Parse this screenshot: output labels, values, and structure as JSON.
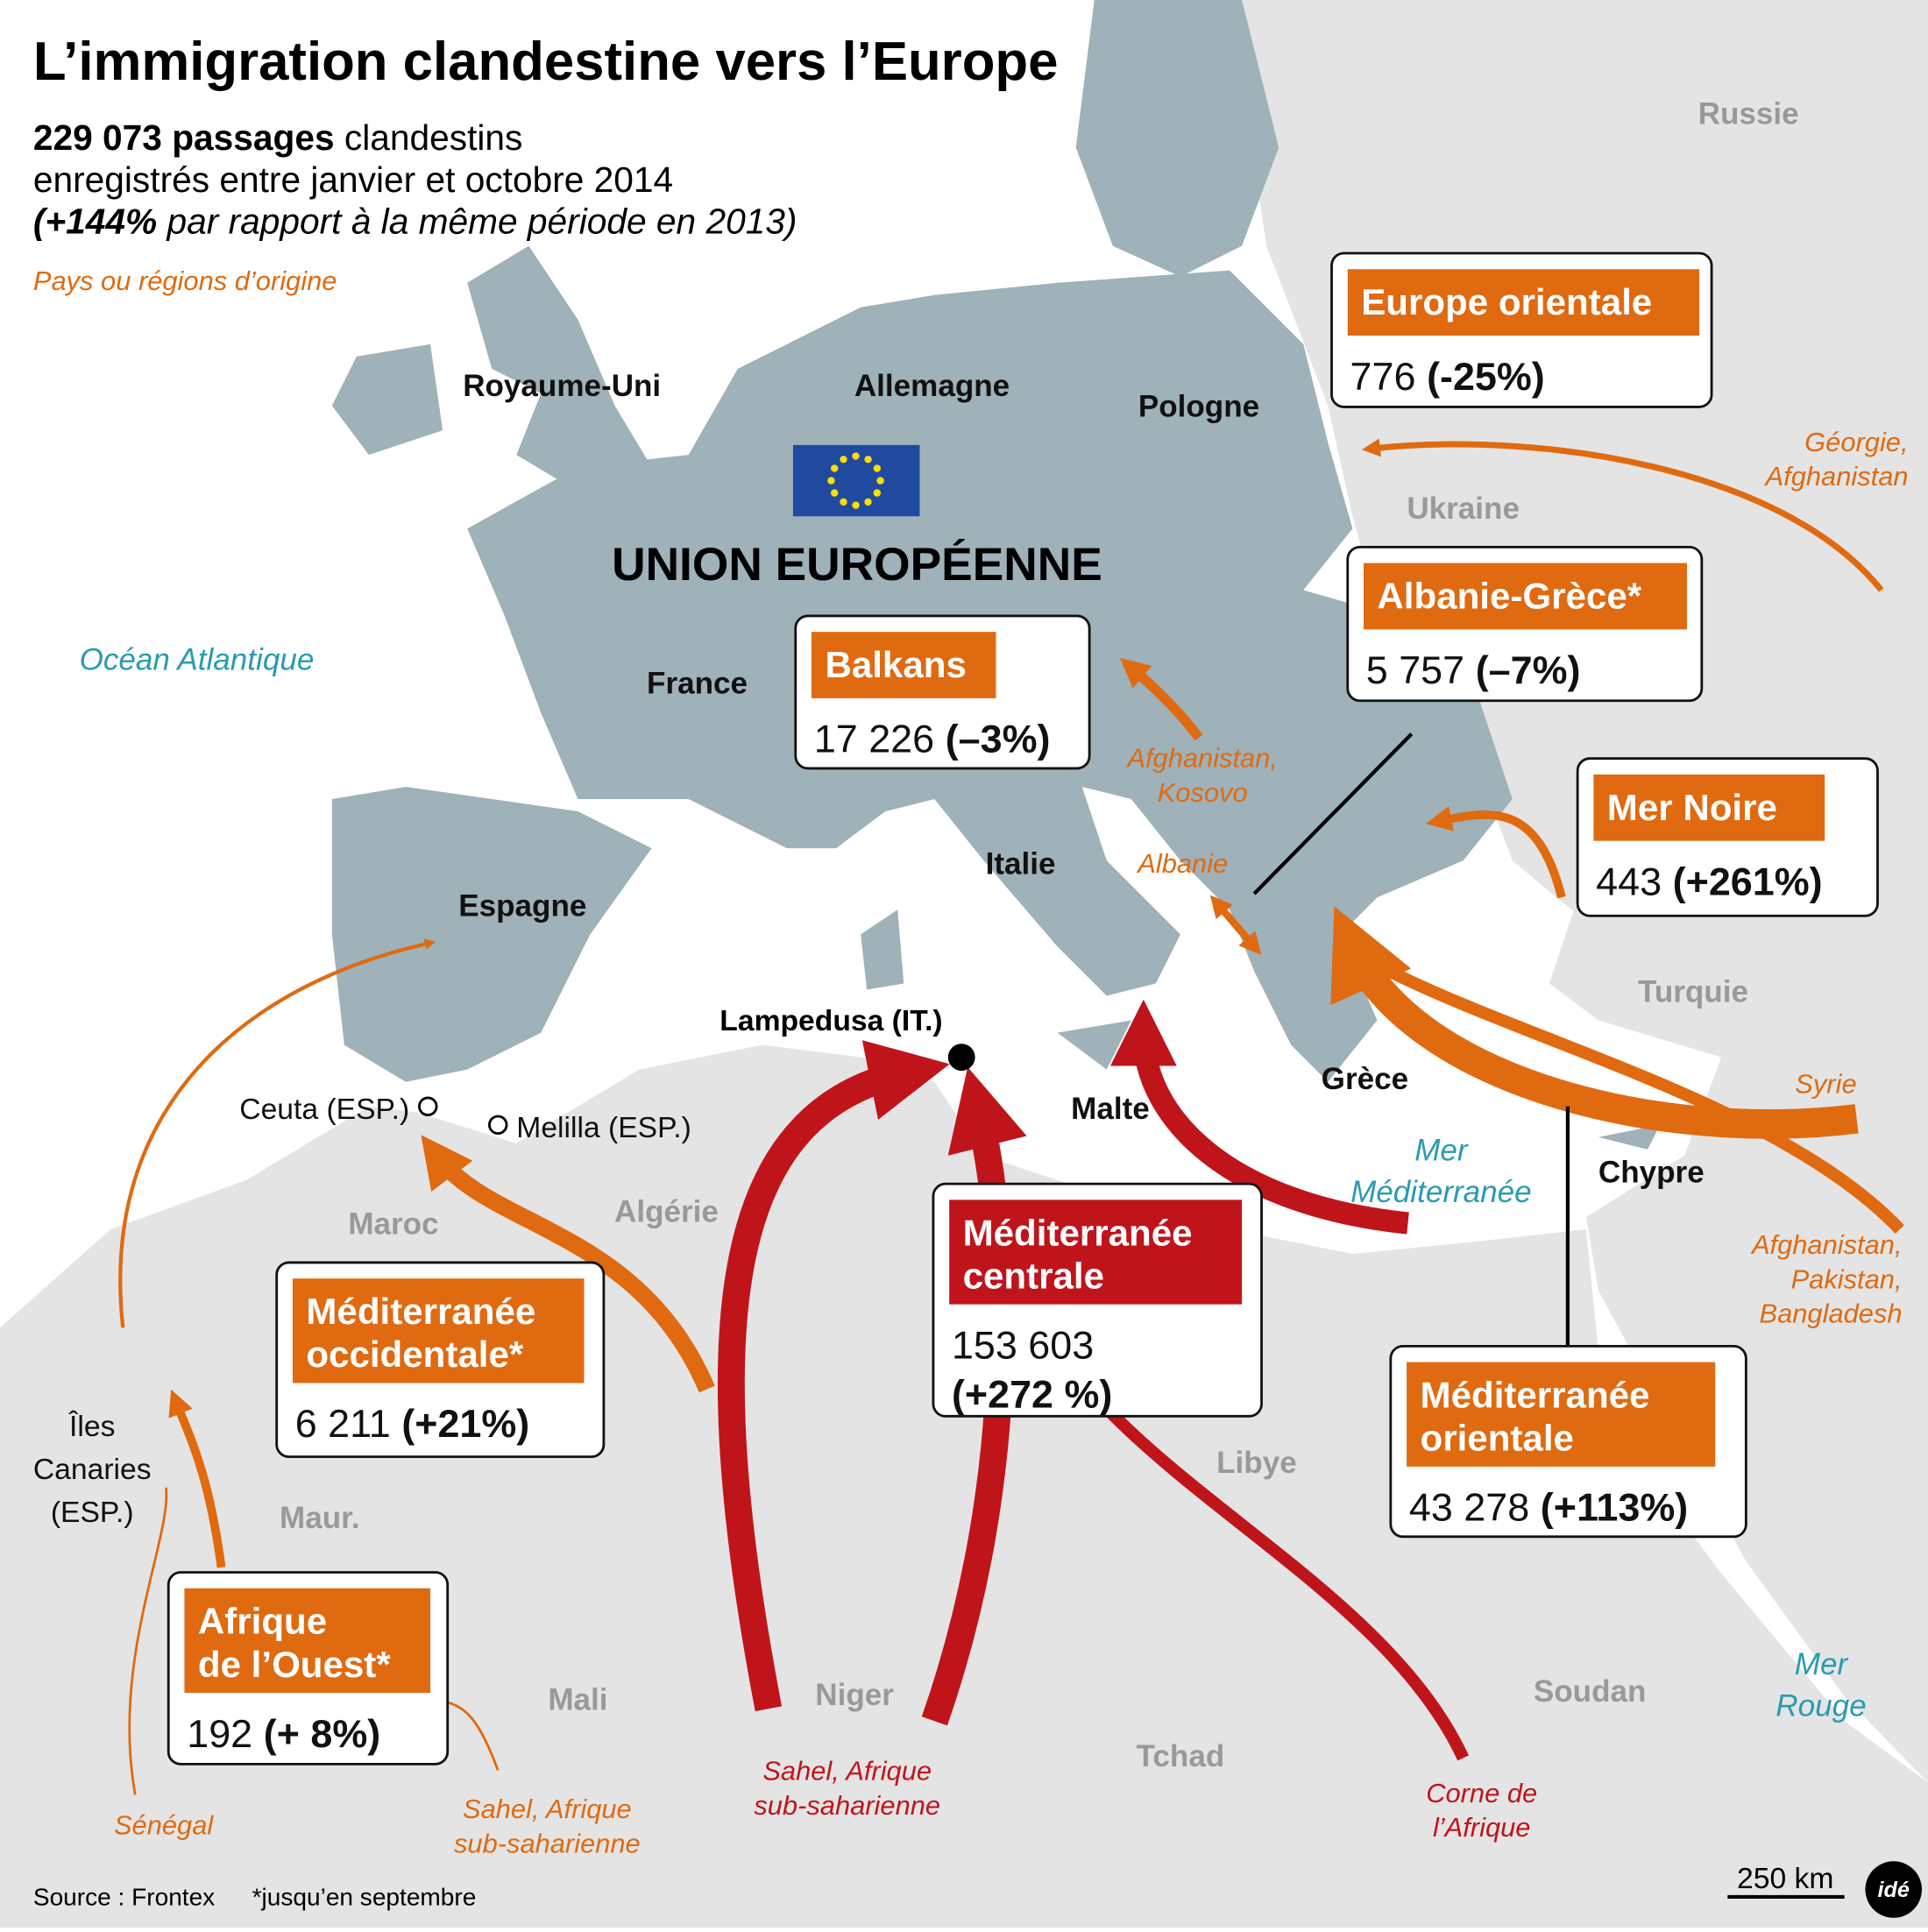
{
  "title": "L’immigration clandestine vers l’Europe",
  "subtitle": {
    "line1_bold": "229 073 passages",
    "line1_rest": " clandestins",
    "line2": "enregistrés entre janvier et octobre 2014",
    "line3_bold": "(+144%",
    "line3_rest": "  par rapport à la même période en 2013)"
  },
  "legend": "Pays ou régions d’origine",
  "union": "UNION EUROPÉENNE",
  "countries_eu": [
    "Royaume-Uni",
    "Allemagne",
    "Pologne",
    "France",
    "Italie",
    "Espagne",
    "Grèce",
    "Malte",
    "Chypre"
  ],
  "countries_other": [
    "Russie",
    "Ukraine",
    "Turquie",
    "Maroc",
    "Algérie",
    "Libye",
    "Maur.",
    "Mali",
    "Niger",
    "Tchad",
    "Soudan"
  ],
  "seas": [
    [
      "Océan Atlantique"
    ],
    [
      "Mer",
      "Méditerranée"
    ],
    [
      "Mer",
      "Rouge"
    ]
  ],
  "places": {
    "lampedusa": "Lampedusa (IT.)",
    "ceuta": "Ceuta (ESP.)",
    "melilla": "Melilla (ESP.)",
    "canaries": [
      "Îles",
      "Canaries",
      "(ESP.)"
    ]
  },
  "routes": [
    {
      "name": [
        "Europe orientale"
      ],
      "count": "776",
      "change": "(-25%)"
    },
    {
      "name": [
        "Albanie-Grèce*"
      ],
      "count": "5 757",
      "change": "(–7%)"
    },
    {
      "name": [
        "Balkans"
      ],
      "count": "17 226",
      "change": "(–3%)"
    },
    {
      "name": [
        "Mer Noire"
      ],
      "count": "443",
      "change": "(+261%)"
    },
    {
      "name": [
        "Méditerranée",
        "occidentale*"
      ],
      "count": "6 211",
      "change": "(+21%)"
    },
    {
      "name": [
        "Méditerranée",
        "centrale"
      ],
      "count": "153 603",
      "change": "(+272 %)"
    },
    {
      "name": [
        "Méditerranée",
        "orientale"
      ],
      "count": "43 278",
      "change": "(+113%)"
    },
    {
      "name": [
        "Afrique",
        "de l’Ouest*"
      ],
      "count": "192",
      "change": "(+ 8%)"
    }
  ],
  "origins": [
    [
      "Géorgie,",
      "Afghanistan"
    ],
    [
      "Afghanistan,",
      "Kosovo"
    ],
    [
      "Albanie"
    ],
    [
      "Syrie"
    ],
    [
      "Afghanistan,",
      "Pakistan,",
      "Bangladesh"
    ],
    [
      "Sénégal"
    ],
    [
      "Sahel, Afrique",
      "sub-saharienne"
    ],
    [
      "Sahel, Afrique",
      "sub-saharienne"
    ],
    [
      "Corne de",
      "l’Afrique"
    ]
  ],
  "footer": {
    "source": "Source : Frontex",
    "note": "*jusqu’en septembre",
    "scale": "250 km",
    "logo": "idé"
  }
}
